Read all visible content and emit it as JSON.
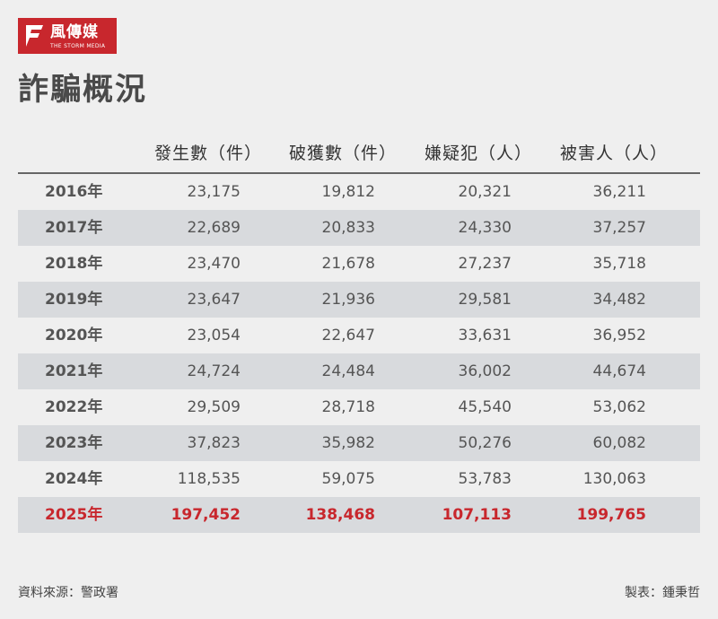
{
  "brand": {
    "name_zh": "風傳媒",
    "name_en": "THE STORM MEDIA",
    "color": "#c8272d"
  },
  "title": "詐騙概況",
  "chart_data": {
    "type": "table",
    "title": "詐騙概況",
    "columns": [
      "發生數（件）",
      "破獲數（件）",
      "嫌疑犯（人）",
      "被害人（人）"
    ],
    "rows": [
      {
        "year": "2016年",
        "values": [
          "23,175",
          "19,812",
          "20,321",
          "36,211"
        ]
      },
      {
        "year": "2017年",
        "values": [
          "22,689",
          "20,833",
          "24,330",
          "37,257"
        ]
      },
      {
        "year": "2018年",
        "values": [
          "23,470",
          "21,678",
          "27,237",
          "35,718"
        ]
      },
      {
        "year": "2019年",
        "values": [
          "23,647",
          "21,936",
          "29,581",
          "34,482"
        ]
      },
      {
        "year": "2020年",
        "values": [
          "23,054",
          "22,647",
          "33,631",
          "36,952"
        ]
      },
      {
        "year": "2021年",
        "values": [
          "24,724",
          "24,484",
          "36,002",
          "44,674"
        ]
      },
      {
        "year": "2022年",
        "values": [
          "29,509",
          "28,718",
          "45,540",
          "53,062"
        ]
      },
      {
        "year": "2023年",
        "values": [
          "37,823",
          "35,982",
          "50,276",
          "60,082"
        ]
      },
      {
        "year": "2024年",
        "values": [
          "118,535",
          "59,075",
          "53,783",
          "130,063"
        ]
      },
      {
        "year": "2025年",
        "values": [
          "197,452",
          "138,468",
          "107,113",
          "199,765"
        ],
        "highlight": true
      }
    ],
    "highlight_color": "#c8272d"
  },
  "footer": {
    "source": "資料來源：警政署",
    "maker": "製表：鍾秉哲"
  }
}
